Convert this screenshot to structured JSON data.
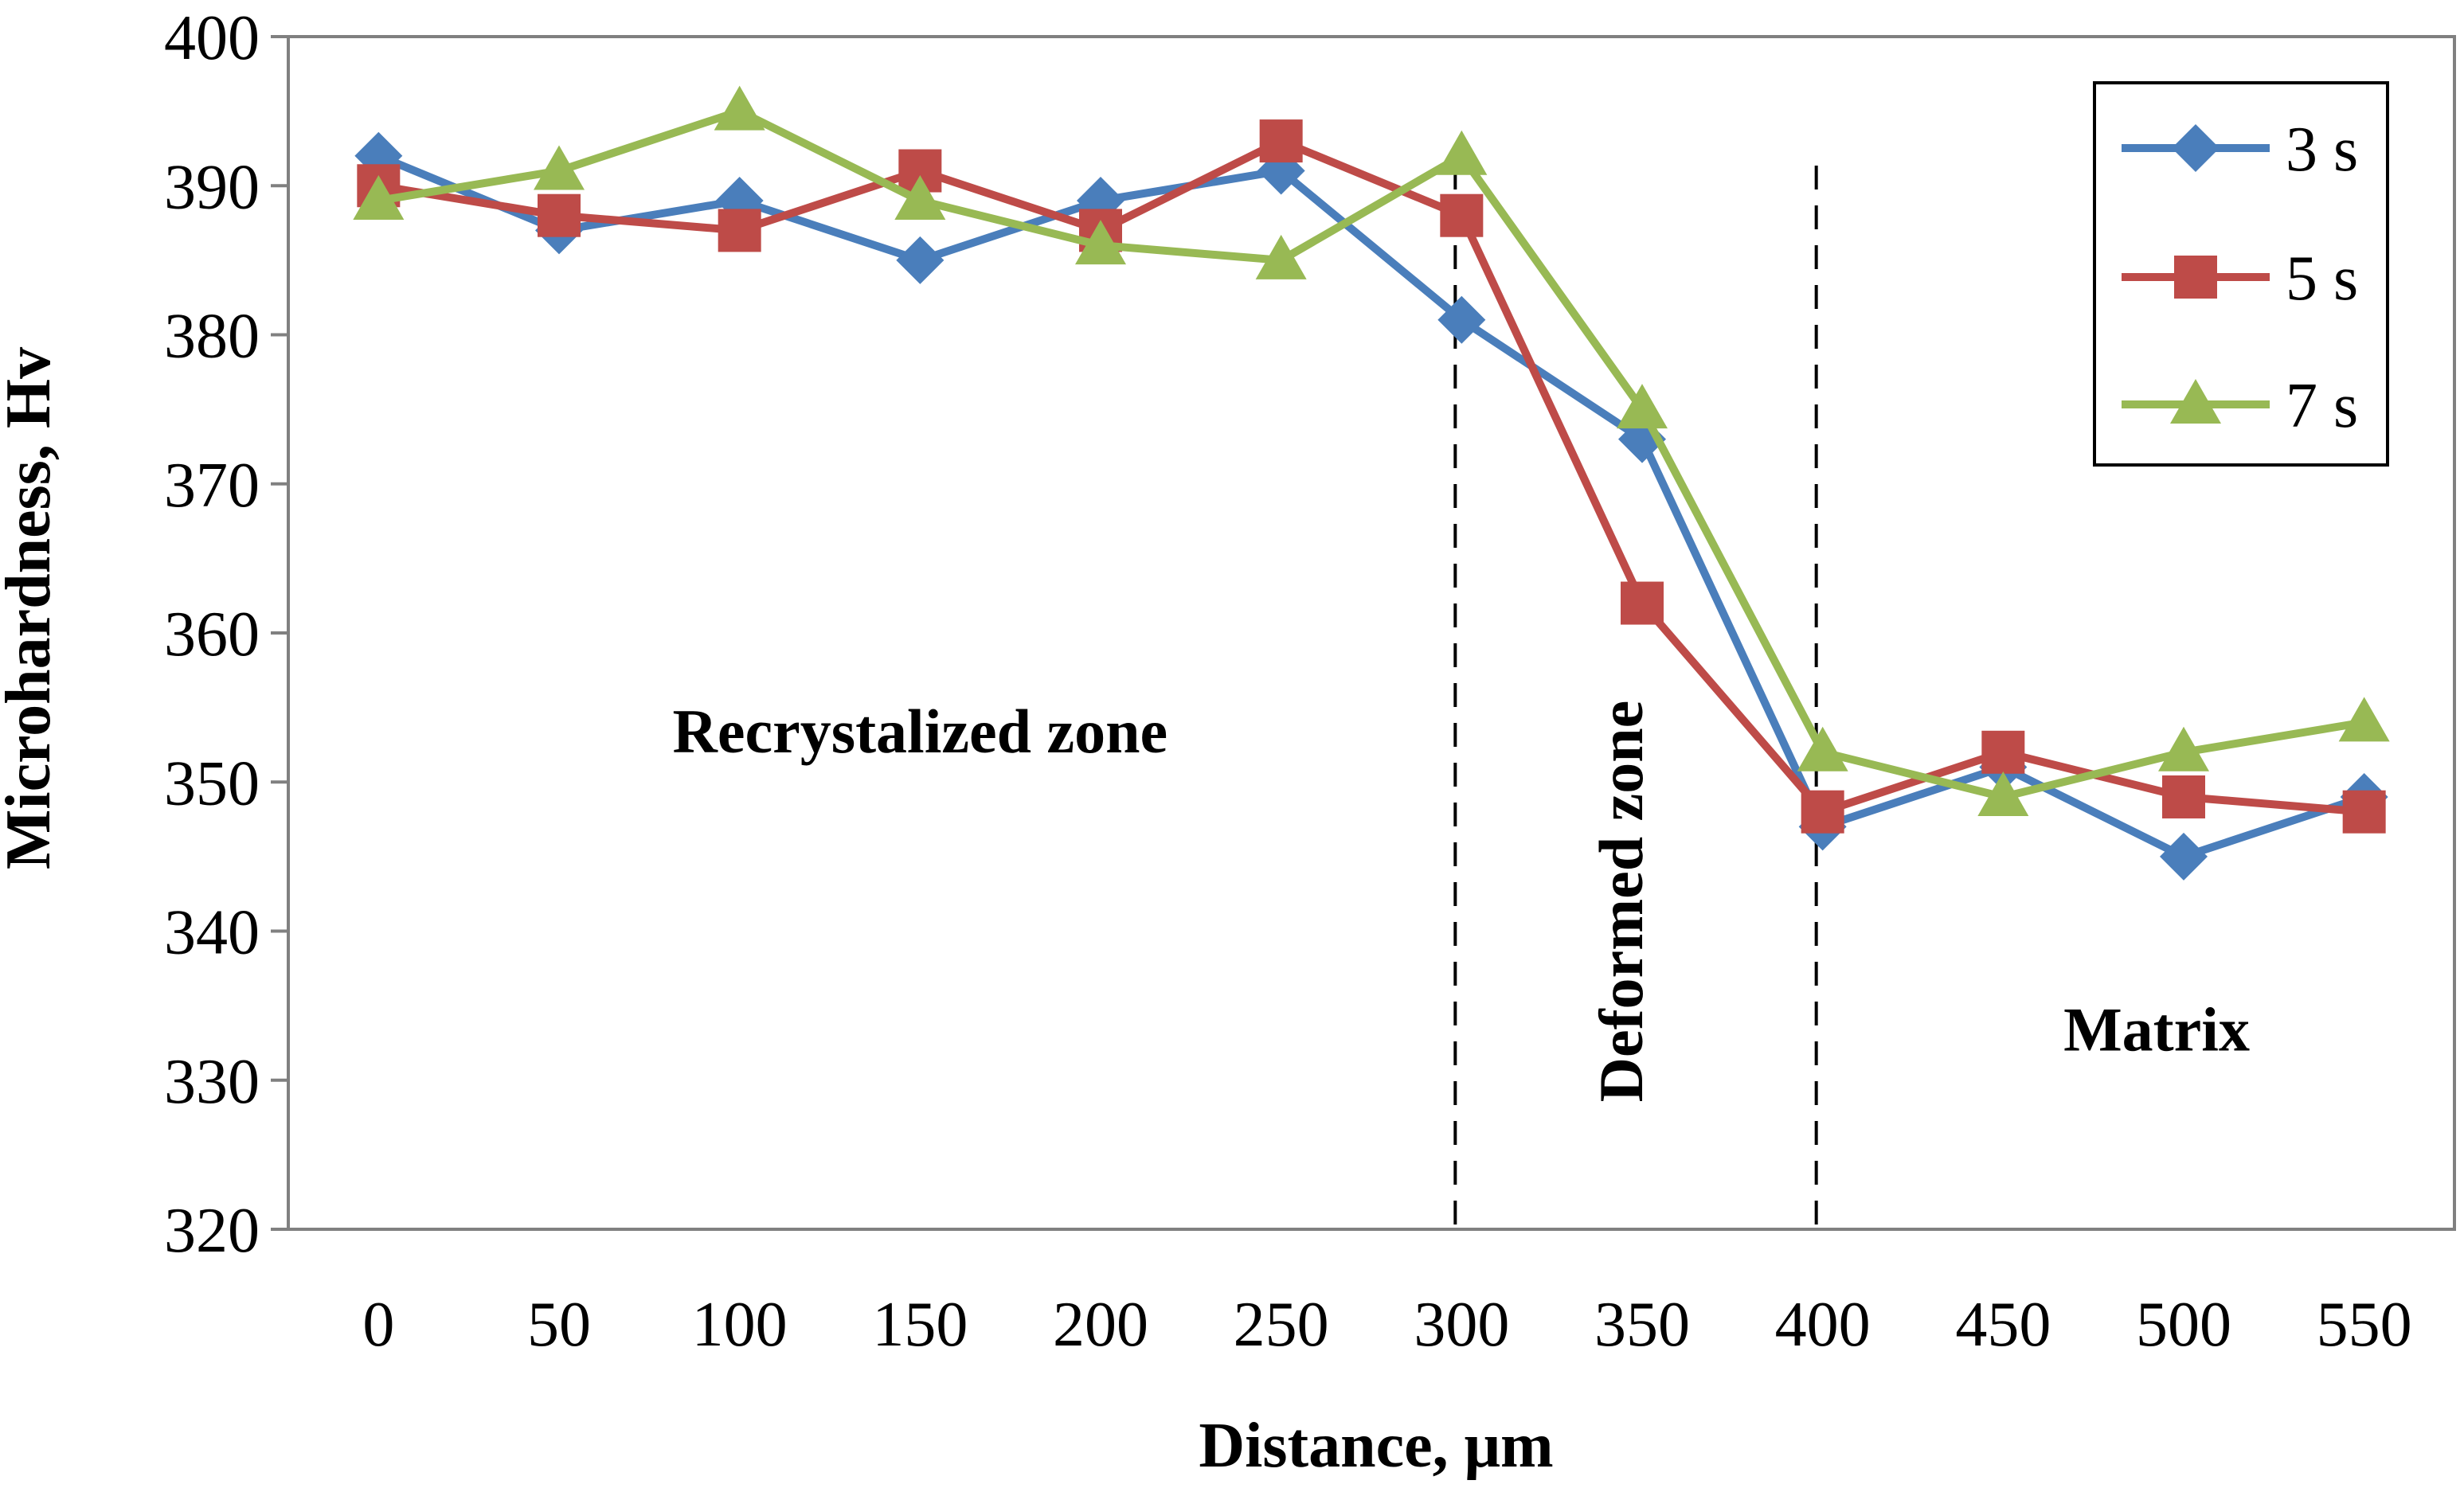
{
  "chart_data": {
    "type": "line",
    "title": "",
    "xlabel": "Distance, μm",
    "ylabel": "Microhardness, Hv",
    "x": [
      0,
      50,
      100,
      150,
      200,
      250,
      300,
      350,
      400,
      450,
      500,
      550
    ],
    "x_tick_labels": [
      "0",
      "50",
      "100",
      "150",
      "200",
      "250",
      "300",
      "350",
      "400",
      "450",
      "500",
      "550"
    ],
    "y_tick_labels": [
      "320",
      "330",
      "340",
      "350",
      "360",
      "370",
      "380",
      "390",
      "400"
    ],
    "ylim": [
      320,
      400
    ],
    "grid": false,
    "legend_position": "top-right",
    "series": [
      {
        "name": "3 s",
        "color": "#4a7ebb",
        "marker": "diamond",
        "values": [
          392,
          387,
          389,
          385,
          389,
          391,
          381,
          373,
          347,
          351,
          345,
          349
        ]
      },
      {
        "name": "5 s",
        "color": "#be4b48",
        "marker": "square",
        "values": [
          390,
          388,
          387,
          391,
          387,
          393,
          388,
          362,
          348,
          352,
          349,
          348
        ]
      },
      {
        "name": "7 s",
        "color": "#98b954",
        "marker": "triangle",
        "values": [
          389,
          391,
          395,
          389,
          386,
          385,
          392,
          375,
          352,
          349,
          352,
          354
        ]
      }
    ],
    "zone_boundaries_x": [
      300,
      400
    ],
    "annotations": [
      {
        "id": "recrystalized",
        "text": "Recrystalized zone",
        "x": 150,
        "y": 352,
        "rotation": 0
      },
      {
        "id": "deformed",
        "text": "Deformed zone",
        "x": 350,
        "y": 342,
        "rotation": -90
      },
      {
        "id": "matrix",
        "text": "Matrix",
        "x": 492.5,
        "y": 332,
        "rotation": 0
      }
    ]
  }
}
